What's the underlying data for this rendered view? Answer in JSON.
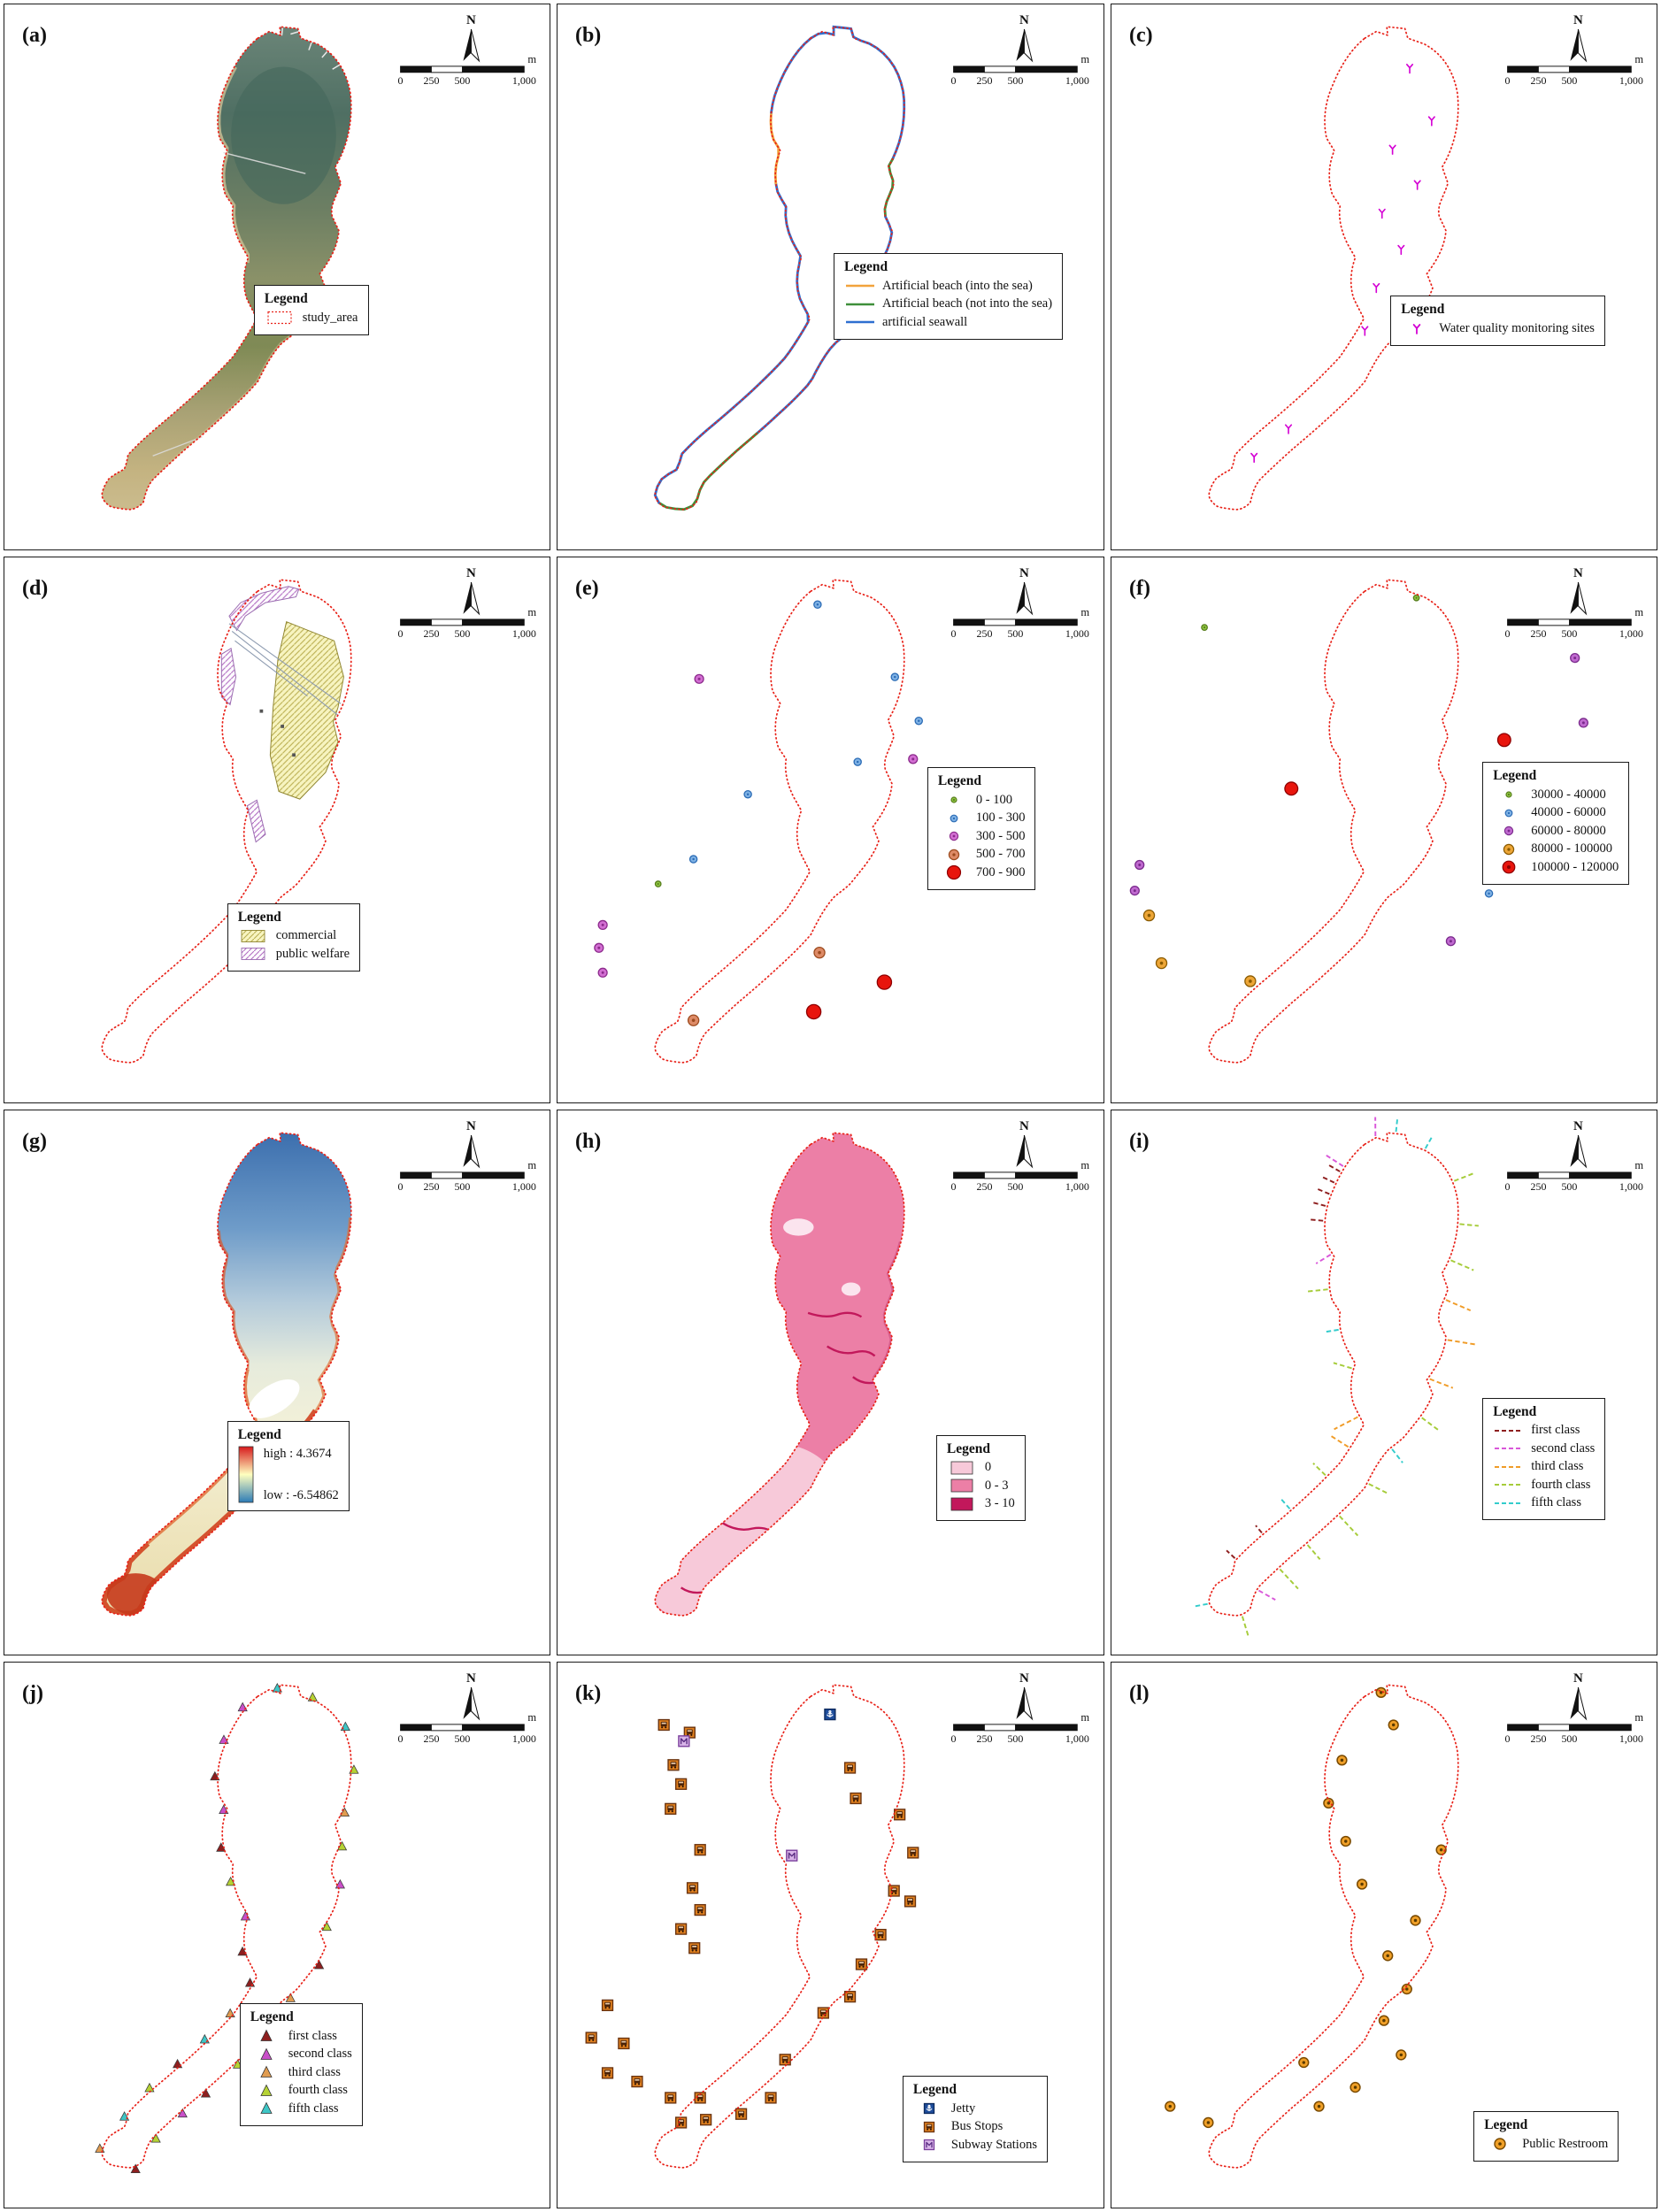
{
  "common": {
    "north_label": "N",
    "scale_ticks": [
      "0",
      "250",
      "500",
      "1,000"
    ],
    "scale_unit": "m",
    "legend_title": "Legend",
    "outline_color": "#e8231a"
  },
  "panels": [
    {
      "id": "a",
      "label": "(a)",
      "legend": [
        {
          "symbol": "outline-box",
          "label": "study_area",
          "color": "#e8231a"
        }
      ]
    },
    {
      "id": "b",
      "label": "(b)",
      "legend": [
        {
          "symbol": "line",
          "label": "Artificial beach (into the sea)",
          "color": "#f2a33c"
        },
        {
          "symbol": "line",
          "label": "Artificial beach (not into the sea)",
          "color": "#3f8f3a"
        },
        {
          "symbol": "line",
          "label": "artificial seawall",
          "color": "#2e6fd0"
        }
      ],
      "coast_segments": [
        {
          "t0": 0.0,
          "t1": 0.17,
          "class": 2
        },
        {
          "t0": 0.17,
          "t1": 0.22,
          "class": 1
        },
        {
          "t0": 0.22,
          "t1": 0.44,
          "class": 2
        },
        {
          "t0": 0.44,
          "t1": 0.55,
          "class": 1
        },
        {
          "t0": 0.55,
          "t1": 0.87,
          "class": 2
        },
        {
          "t0": 0.87,
          "t1": 0.93,
          "class": 0
        },
        {
          "t0": 0.93,
          "t1": 1.0,
          "class": 2
        }
      ]
    },
    {
      "id": "c",
      "label": "(c)",
      "legend": [
        {
          "symbol": "wq-marker",
          "label": "Water quality monitoring sites",
          "color": "#d400d4"
        }
      ],
      "points": [
        [
          255,
          60
        ],
        [
          278,
          115
        ],
        [
          237,
          145
        ],
        [
          263,
          182
        ],
        [
          226,
          212
        ],
        [
          246,
          250
        ],
        [
          220,
          290
        ],
        [
          208,
          335
        ],
        [
          128,
          438
        ],
        [
          92,
          468
        ]
      ]
    },
    {
      "id": "d",
      "label": "(d)",
      "legend": [
        {
          "symbol": "hatch-yellow",
          "label": "commercial",
          "color": "#f7f4c0"
        },
        {
          "symbol": "hatch-purple",
          "label": "public welfare",
          "color": "#c07fd4"
        }
      ]
    },
    {
      "id": "e",
      "label": "(e)",
      "classes": [
        {
          "symbol": "dot",
          "label": "0 - 100",
          "color": "#8fc641",
          "stroke": "#567d1c",
          "r": 3
        },
        {
          "symbol": "dot",
          "label": "100 - 300",
          "color": "#7fb2e5",
          "stroke": "#2a6bb5",
          "r": 3.8
        },
        {
          "symbol": "dot",
          "label": "300 - 500",
          "color": "#d36fd3",
          "stroke": "#8c2a8c",
          "r": 4.6
        },
        {
          "symbol": "dot",
          "label": "500 - 700",
          "color": "#dd8a66",
          "stroke": "#9c4a1e",
          "r": 5.6
        },
        {
          "symbol": "dot",
          "label": "700 - 900",
          "color": "#e8150d",
          "stroke": "#8e0000",
          "r": 7.5
        }
      ],
      "points": [
        [
          215,
          42,
          1
        ],
        [
          91,
          120,
          2
        ],
        [
          296,
          118,
          1
        ],
        [
          321,
          164,
          1
        ],
        [
          257,
          207,
          1
        ],
        [
          315,
          204,
          2
        ],
        [
          142,
          241,
          1
        ],
        [
          85,
          309,
          1
        ],
        [
          48,
          335,
          0
        ],
        [
          -10,
          378,
          2
        ],
        [
          -14,
          402,
          2
        ],
        [
          -10,
          428,
          2
        ],
        [
          85,
          478,
          3
        ],
        [
          217,
          407,
          3
        ],
        [
          411,
          320,
          4
        ],
        [
          285,
          438,
          4
        ],
        [
          211,
          469,
          4
        ]
      ]
    },
    {
      "id": "f",
      "label": "(f)",
      "classes": [
        {
          "symbol": "dot",
          "label": "30000 - 40000",
          "color": "#8fc641",
          "stroke": "#567d1c",
          "r": 3
        },
        {
          "symbol": "dot",
          "label": "40000 - 60000",
          "color": "#7fb2e5",
          "stroke": "#2a6bb5",
          "r": 3.8
        },
        {
          "symbol": "dot",
          "label": "60000 - 80000",
          "color": "#c06ad0",
          "stroke": "#7a2a8c",
          "r": 4.6
        },
        {
          "symbol": "dot",
          "label": "80000 - 100000",
          "color": "#eda637",
          "stroke": "#8a5a00",
          "r": 5.6
        },
        {
          "symbol": "dot",
          "label": "100000 - 120000",
          "color": "#e8150d",
          "stroke": "#8e0000",
          "r": 6.8
        }
      ],
      "points": [
        [
          40,
          66,
          0
        ],
        [
          262,
          35,
          0
        ],
        [
          428,
          98,
          2
        ],
        [
          437,
          166,
          2
        ],
        [
          443,
          230,
          1
        ],
        [
          354,
          184,
          4
        ],
        [
          131,
          235,
          4
        ],
        [
          -28,
          315,
          2
        ],
        [
          -33,
          342,
          2
        ],
        [
          -18,
          368,
          3
        ],
        [
          88,
          437,
          3
        ],
        [
          338,
          345,
          1
        ],
        [
          298,
          395,
          2
        ],
        [
          -5,
          418,
          3
        ]
      ]
    },
    {
      "id": "g",
      "label": "(g)",
      "legend_ramp": {
        "high_label": "high : 4.3674",
        "low_label": "low : -6.54862",
        "top_color": "#d7191c",
        "mid_color": "#ffffbf",
        "bottom_color": "#2c7bb6"
      }
    },
    {
      "id": "h",
      "label": "(h)",
      "legend": [
        {
          "symbol": "swatch",
          "label": "0",
          "color": "#f7c9d9"
        },
        {
          "symbol": "swatch",
          "label": "0 - 3",
          "color": "#ec7fa6"
        },
        {
          "symbol": "swatch",
          "label": "3 - 10",
          "color": "#c2185b"
        }
      ]
    },
    {
      "id": "i",
      "label": "(i)",
      "classes": [
        {
          "symbol": "dash-line",
          "label": "first class",
          "color": "#8e1f1f"
        },
        {
          "symbol": "dash-line",
          "label": "second class",
          "color": "#d957d9"
        },
        {
          "symbol": "dash-line",
          "label": "third class",
          "color": "#f09c28"
        },
        {
          "symbol": "dash-line",
          "label": "fourth class",
          "color": "#a6cc3a"
        },
        {
          "symbol": "dash-line",
          "label": "fifth class",
          "color": "#33cccc"
        }
      ],
      "segments": [
        [
          0.975,
          1,
          26
        ],
        [
          0.01,
          1,
          22
        ],
        [
          0.035,
          4,
          18
        ],
        [
          0.065,
          4,
          16
        ],
        [
          0.1,
          3,
          26
        ],
        [
          0.135,
          3,
          22
        ],
        [
          0.165,
          3,
          28
        ],
        [
          0.2,
          2,
          30
        ],
        [
          0.235,
          2,
          34
        ],
        [
          0.27,
          2,
          28
        ],
        [
          0.305,
          3,
          24
        ],
        [
          0.34,
          4,
          20
        ],
        [
          0.375,
          3,
          26
        ],
        [
          0.41,
          3,
          30
        ],
        [
          0.445,
          3,
          22
        ],
        [
          0.475,
          3,
          30
        ],
        [
          0.5,
          1,
          22
        ],
        [
          0.525,
          3,
          26
        ],
        [
          0.555,
          4,
          18
        ],
        [
          0.6,
          0,
          14
        ],
        [
          0.63,
          0,
          12
        ],
        [
          0.66,
          4,
          16
        ],
        [
          0.7,
          3,
          20
        ],
        [
          0.73,
          2,
          26
        ],
        [
          0.76,
          2,
          30
        ],
        [
          0.8,
          3,
          22
        ],
        [
          0.835,
          4,
          18
        ],
        [
          0.87,
          3,
          24
        ],
        [
          0.9,
          1,
          20
        ],
        [
          0.928,
          0,
          15
        ],
        [
          0.94,
          0,
          15
        ],
        [
          0.95,
          0,
          15
        ],
        [
          0.96,
          0,
          15
        ],
        [
          0.97,
          0,
          15
        ]
      ]
    },
    {
      "id": "j",
      "label": "(j)",
      "classes": [
        {
          "symbol": "triangle",
          "label": "first class",
          "color": "#8e1f1f"
        },
        {
          "symbol": "triangle",
          "label": "second class",
          "color": "#c94fc9"
        },
        {
          "symbol": "triangle",
          "label": "third class",
          "color": "#e09c50"
        },
        {
          "symbol": "triangle",
          "label": "fourth class",
          "color": "#b5d234"
        },
        {
          "symbol": "triangle",
          "label": "fifth class",
          "color": "#3ec6c6"
        }
      ],
      "points": [
        [
          0.985,
          1
        ],
        [
          0.025,
          4
        ],
        [
          0.06,
          3
        ],
        [
          0.095,
          4
        ],
        [
          0.13,
          3
        ],
        [
          0.165,
          2
        ],
        [
          0.195,
          3
        ],
        [
          0.23,
          1
        ],
        [
          0.265,
          3
        ],
        [
          0.3,
          0
        ],
        [
          0.335,
          2
        ],
        [
          0.37,
          0
        ],
        [
          0.405,
          3
        ],
        [
          0.44,
          0
        ],
        [
          0.465,
          1
        ],
        [
          0.495,
          3
        ],
        [
          0.525,
          0
        ],
        [
          0.56,
          2
        ],
        [
          0.595,
          4
        ],
        [
          0.625,
          3
        ],
        [
          0.655,
          0
        ],
        [
          0.685,
          4
        ],
        [
          0.715,
          2
        ],
        [
          0.745,
          0
        ],
        [
          0.775,
          0
        ],
        [
          0.805,
          1
        ],
        [
          0.835,
          3
        ],
        [
          0.865,
          0
        ],
        [
          0.895,
          1
        ],
        [
          0.925,
          0
        ],
        [
          0.955,
          1
        ]
      ]
    },
    {
      "id": "k",
      "label": "(k)",
      "legend": [
        {
          "symbol": "jetty",
          "label": "Jetty",
          "color": "#1f4e9c"
        },
        {
          "symbol": "bus",
          "label": "Bus Stops",
          "color": "#e0801f"
        },
        {
          "symbol": "subway",
          "label": "Subway Stations",
          "color": "#d8b4e8"
        }
      ],
      "points": [
        [
          228,
          47,
          0
        ],
        [
          54,
          58,
          1
        ],
        [
          81,
          66,
          1
        ],
        [
          75,
          75,
          2
        ],
        [
          64,
          100,
          1
        ],
        [
          72,
          120,
          1
        ],
        [
          61,
          146,
          1
        ],
        [
          92,
          189,
          1
        ],
        [
          188,
          195,
          2
        ],
        [
          84,
          229,
          1
        ],
        [
          92,
          252,
          1
        ],
        [
          72,
          272,
          1
        ],
        [
          86,
          292,
          1
        ],
        [
          -5,
          352,
          1
        ],
        [
          -22,
          386,
          1
        ],
        [
          12,
          392,
          1
        ],
        [
          -5,
          423,
          1
        ],
        [
          26,
          432,
          1
        ],
        [
          61,
          449,
          1
        ],
        [
          92,
          449,
          1
        ],
        [
          72,
          475,
          1
        ],
        [
          98,
          472,
          1
        ],
        [
          249,
          103,
          1
        ],
        [
          255,
          135,
          1
        ],
        [
          301,
          152,
          1
        ],
        [
          315,
          192,
          1
        ],
        [
          295,
          232,
          1
        ],
        [
          312,
          243,
          1
        ],
        [
          281,
          278,
          1
        ],
        [
          261,
          309,
          1
        ],
        [
          249,
          343,
          1
        ],
        [
          221,
          360,
          1
        ],
        [
          181,
          409,
          1
        ],
        [
          166,
          449,
          1
        ],
        [
          135,
          466,
          1
        ]
      ]
    },
    {
      "id": "l",
      "label": "(l)",
      "legend": [
        {
          "symbol": "restroom",
          "label": "Public Restroom",
          "color": "#f0a028"
        }
      ],
      "points": [
        [
          225,
          24
        ],
        [
          238,
          58
        ],
        [
          184,
          95
        ],
        [
          170,
          140
        ],
        [
          188,
          180
        ],
        [
          288,
          189
        ],
        [
          205,
          225
        ],
        [
          261,
          263
        ],
        [
          232,
          300
        ],
        [
          252,
          335
        ],
        [
          228,
          368
        ],
        [
          246,
          404
        ],
        [
          144,
          412
        ],
        [
          198,
          438
        ],
        [
          160,
          458
        ],
        [
          44,
          475
        ],
        [
          4,
          458
        ]
      ]
    }
  ]
}
